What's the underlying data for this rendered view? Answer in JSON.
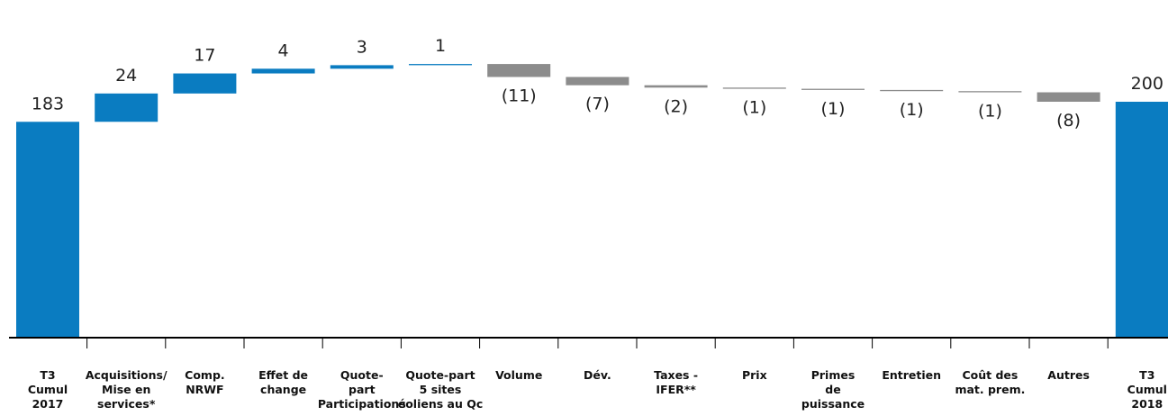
{
  "chart_data": {
    "type": "bar",
    "subtype": "waterfall",
    "title": "",
    "xlabel": "",
    "ylabel": "",
    "categories": [
      [
        "T3",
        "Cumul",
        "2017"
      ],
      [
        "Acquisitions/",
        "Mise en",
        "services*"
      ],
      [
        "Comp.",
        "NRWF"
      ],
      [
        "Effet de",
        "change"
      ],
      [
        "Quote-",
        "part",
        "Participations"
      ],
      [
        "Quote-part",
        "5 sites",
        "éoliens au Qc"
      ],
      [
        "Volume"
      ],
      [
        "Dév."
      ],
      [
        "Taxes -",
        "IFER**"
      ],
      [
        "Prix"
      ],
      [
        "Primes",
        "de",
        "puissance"
      ],
      [
        "Entretien"
      ],
      [
        "Coût des",
        "mat. prem."
      ],
      [
        "Autres"
      ],
      [
        "T3",
        "Cumul",
        "2018"
      ]
    ],
    "values": [
      183,
      24,
      17,
      4,
      3,
      1,
      -11,
      -7,
      -2,
      -1,
      -1,
      -1,
      -1,
      -8,
      200
    ],
    "labels": [
      "183",
      "24",
      "17",
      "4",
      "3",
      "1",
      "(11)",
      "(7)",
      "(2)",
      "(1)",
      "(1)",
      "(1)",
      "(1)",
      "(8)",
      "200"
    ],
    "bar_kinds": [
      "total",
      "increase",
      "increase",
      "increase",
      "increase",
      "increase",
      "decrease",
      "decrease",
      "decrease",
      "decrease",
      "decrease",
      "decrease",
      "decrease",
      "decrease",
      "total"
    ],
    "colors": {
      "total": "#0A7CC1",
      "increase": "#0A7CC1",
      "decrease": "#8C8C8C"
    },
    "ylim": [
      0,
      232
    ],
    "grid": false,
    "legend": "none"
  }
}
